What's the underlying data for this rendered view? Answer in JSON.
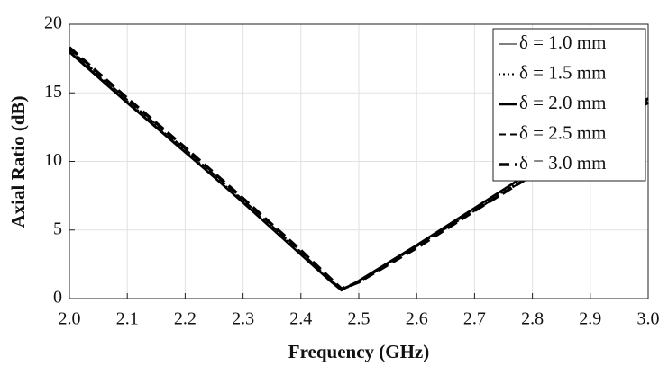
{
  "chart_data": {
    "type": "line",
    "xlabel": "Frequency (GHz)",
    "ylabel": "Axial Ratio (dB)",
    "x": [
      2.0,
      2.1,
      2.2,
      2.3,
      2.4,
      2.45,
      2.47,
      2.5,
      2.6,
      2.7,
      2.8,
      2.9,
      3.0
    ],
    "series": [
      {
        "name": "δ = 1.0 mm",
        "color": "#000000",
        "style": "solid",
        "width": 1,
        "values": [
          17.9,
          14.2,
          10.6,
          7.0,
          3.2,
          1.3,
          0.6,
          1.3,
          3.9,
          6.6,
          9.2,
          11.9,
          14.5
        ]
      },
      {
        "name": "δ = 1.5 mm",
        "color": "#000000",
        "style": "dotted",
        "width": 2,
        "values": [
          18.1,
          14.4,
          10.8,
          7.1,
          3.3,
          1.4,
          0.6,
          1.2,
          3.8,
          6.5,
          9.1,
          11.8,
          14.4
        ]
      },
      {
        "name": "δ = 2.0 mm",
        "color": "#000000",
        "style": "solid",
        "width": 2.5,
        "values": [
          18.0,
          14.3,
          10.7,
          7.0,
          3.2,
          1.3,
          0.6,
          1.3,
          3.9,
          6.6,
          9.3,
          12.0,
          14.6
        ]
      },
      {
        "name": "δ = 2.5 mm",
        "color": "#000000",
        "style": "dashed",
        "width": 2,
        "values": [
          18.2,
          14.5,
          10.9,
          7.2,
          3.4,
          1.4,
          0.7,
          1.2,
          3.8,
          6.4,
          9.0,
          11.7,
          14.4
        ]
      },
      {
        "name": "δ = 3.0 mm",
        "color": "#000000",
        "style": "dashed",
        "width": 3.5,
        "values": [
          18.3,
          14.6,
          11.0,
          7.3,
          3.5,
          1.5,
          0.7,
          1.2,
          3.7,
          6.4,
          9.0,
          11.7,
          14.3
        ]
      }
    ],
    "xlim": [
      2.0,
      3.0
    ],
    "xticks": [
      {
        "value": 2.0,
        "label": "2.0"
      },
      {
        "value": 2.1,
        "label": "2.1"
      },
      {
        "value": 2.2,
        "label": "2.2"
      },
      {
        "value": 2.3,
        "label": "2.3"
      },
      {
        "value": 2.4,
        "label": "2.4"
      },
      {
        "value": 2.5,
        "label": "2.5"
      },
      {
        "value": 2.6,
        "label": "2.6"
      },
      {
        "value": 2.7,
        "label": "2.7"
      },
      {
        "value": 2.8,
        "label": "2.8"
      },
      {
        "value": 2.9,
        "label": "2.9"
      },
      {
        "value": 3.0,
        "label": "3.0"
      }
    ],
    "ylim": [
      0,
      20
    ],
    "yticks": [
      0,
      5,
      10,
      15,
      20
    ],
    "grid": true,
    "legend": "upper-right"
  }
}
